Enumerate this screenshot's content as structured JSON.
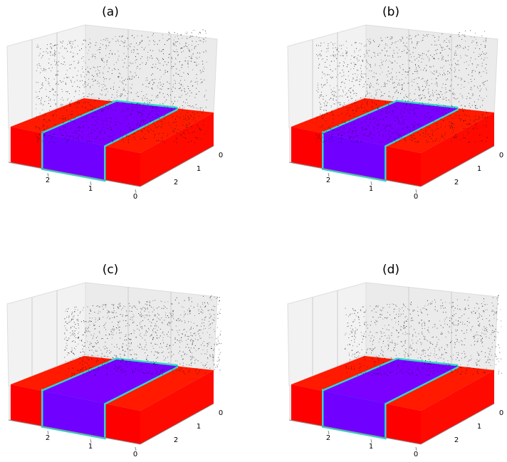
{
  "panels": [
    {
      "label": "(a)",
      "x_ticks": [
        2,
        1,
        0
      ],
      "y_ticks": [
        0,
        1,
        2
      ]
    },
    {
      "label": "(b)",
      "x_ticks": [
        2,
        1,
        0
      ],
      "y_ticks": [
        0,
        1,
        2
      ]
    },
    {
      "label": "(c)",
      "x_ticks": [
        2,
        1,
        0
      ],
      "y_ticks": [
        0,
        1,
        2
      ]
    },
    {
      "label": "(d)",
      "x_ticks": [
        2,
        1,
        0
      ],
      "y_ticks": [
        0,
        1,
        2
      ]
    }
  ]
}
